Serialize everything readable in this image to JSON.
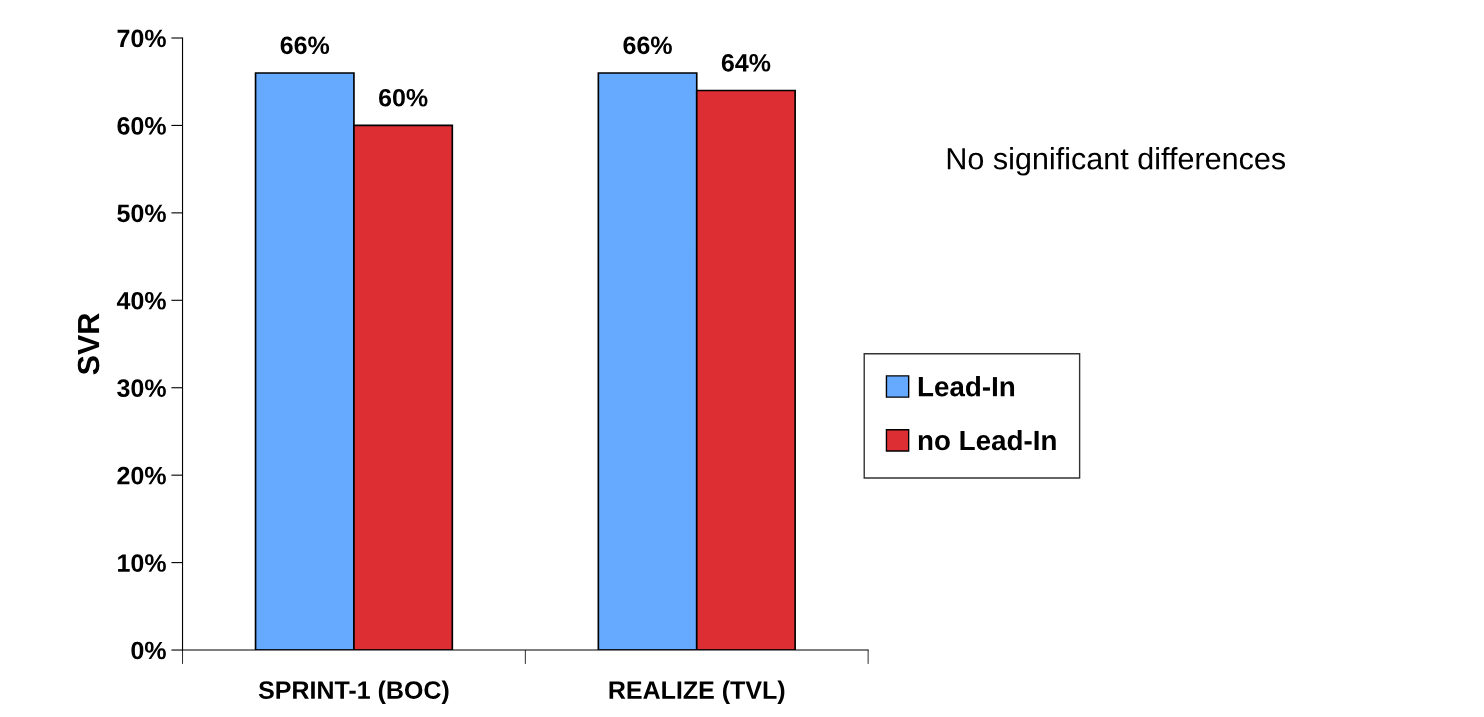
{
  "chart_data": {
    "type": "bar",
    "ylabel": "SVR",
    "categories": [
      "SPRINT-1 (BOC)",
      "REALIZE (TVL)"
    ],
    "series": [
      {
        "name": "Lead-In",
        "color": "#66aaff",
        "values": [
          66,
          66
        ],
        "value_labels": [
          "66%",
          "66%"
        ]
      },
      {
        "name": "no Lead-In",
        "color": "#dd2e34",
        "values": [
          60,
          64
        ],
        "value_labels": [
          "60%",
          "64%"
        ]
      }
    ],
    "ylim": [
      0,
      70
    ],
    "yticks": [
      {
        "value": 0,
        "label": "0%"
      },
      {
        "value": 10,
        "label": "10%"
      },
      {
        "value": 20,
        "label": "20%"
      },
      {
        "value": 30,
        "label": "30%"
      },
      {
        "value": 40,
        "label": "40%"
      },
      {
        "value": 50,
        "label": "50%"
      },
      {
        "value": 60,
        "label": "60%"
      },
      {
        "value": 70,
        "label": "70%"
      }
    ],
    "grid": false,
    "legend": "right",
    "annotations": [
      "No significant differences"
    ]
  }
}
